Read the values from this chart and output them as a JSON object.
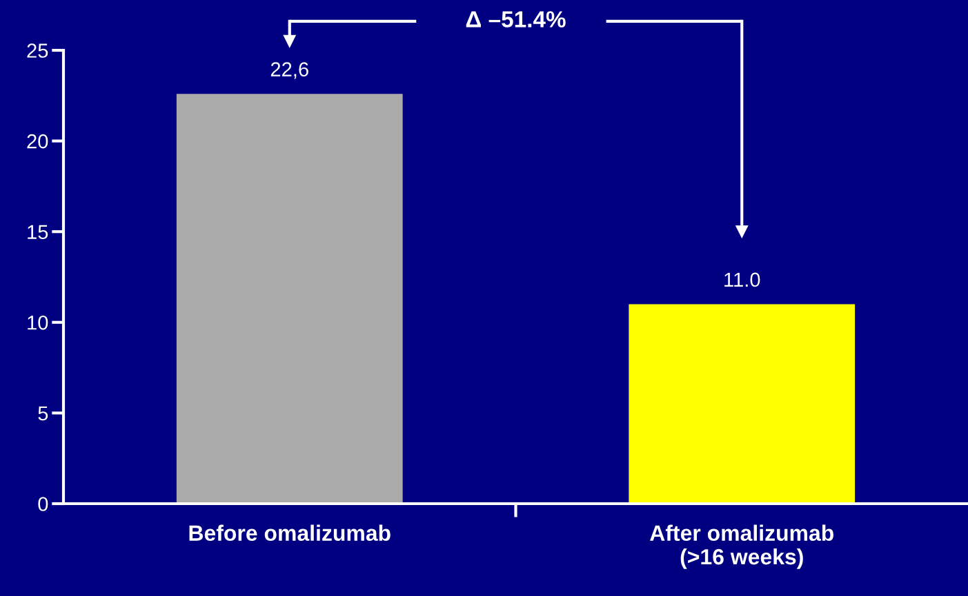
{
  "chart_data": {
    "type": "bar",
    "categories": [
      "Before omalizumab",
      "After omalizumab\n(>16 weeks)"
    ],
    "values": [
      22.6,
      11.0
    ],
    "value_labels": [
      "22,6",
      "11.0"
    ],
    "colors": [
      "#aaaaaa",
      "#ffff00"
    ],
    "ylim": [
      0,
      25
    ],
    "yticks": [
      0,
      5,
      10,
      15,
      20,
      25
    ],
    "grid": false,
    "legend": false,
    "annotations": [
      "Δ –51.4%"
    ]
  }
}
